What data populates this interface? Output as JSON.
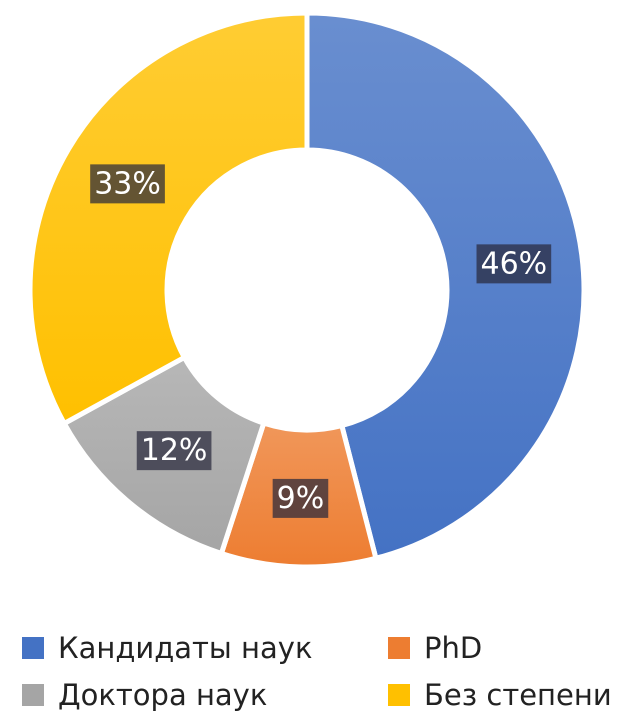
{
  "chart_data": {
    "type": "donut",
    "categories": [
      "Кандидаты наук",
      "PhD",
      "Доктора наук",
      "Без степени"
    ],
    "values": [
      46,
      9,
      12,
      33
    ],
    "value_labels": [
      "46%",
      "9%",
      "12%",
      "33%"
    ],
    "colors": [
      "#4472c4",
      "#ed7d31",
      "#a5a5a5",
      "#ffc000"
    ]
  }
}
